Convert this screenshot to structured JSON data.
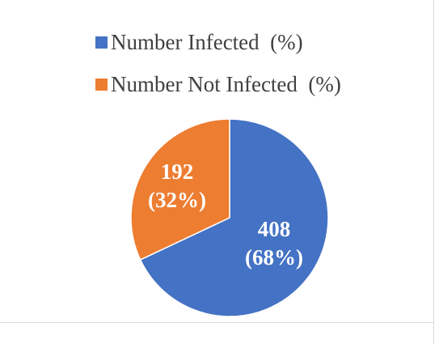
{
  "chart_data": {
    "type": "pie",
    "categories": [
      "Number Infected  (%)",
      "Number Not Infected  (%)"
    ],
    "values": [
      408,
      192
    ],
    "percent_labels": [
      "(68%)",
      "(32%)"
    ],
    "colors": [
      "#4472C4",
      "#ED7D31"
    ],
    "title": "",
    "legend": "top",
    "start_angle_deg": 0,
    "direction": "clockwise"
  }
}
